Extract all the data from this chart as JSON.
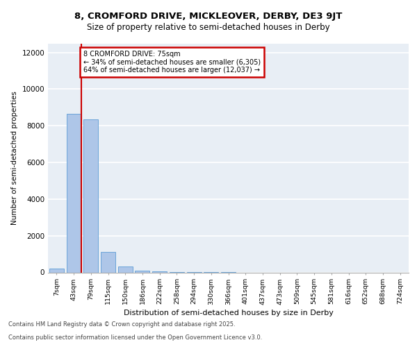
{
  "title_line1": "8, CROMFORD DRIVE, MICKLEOVER, DERBY, DE3 9JT",
  "title_line2": "Size of property relative to semi-detached houses in Derby",
  "xlabel": "Distribution of semi-detached houses by size in Derby",
  "ylabel": "Number of semi-detached properties",
  "categories": [
    "7sqm",
    "43sqm",
    "79sqm",
    "115sqm",
    "150sqm",
    "186sqm",
    "222sqm",
    "258sqm",
    "294sqm",
    "330sqm",
    "366sqm",
    "401sqm",
    "437sqm",
    "473sqm",
    "509sqm",
    "545sqm",
    "581sqm",
    "616sqm",
    "652sqm",
    "688sqm",
    "724sqm"
  ],
  "values": [
    210,
    8650,
    8340,
    1100,
    320,
    100,
    70,
    15,
    5,
    2,
    1,
    0,
    0,
    0,
    0,
    0,
    0,
    0,
    0,
    0,
    0
  ],
  "bar_color": "#aec6e8",
  "bar_edge_color": "#5b9bd5",
  "ylim": [
    0,
    12500
  ],
  "yticks": [
    0,
    2000,
    4000,
    6000,
    8000,
    10000,
    12000
  ],
  "property_name": "8 CROMFORD DRIVE: 75sqm",
  "pct_smaller": 34,
  "pct_larger": 64,
  "count_smaller": 6305,
  "count_larger": 12037,
  "vline_color": "#cc0000",
  "annotation_box_color": "#cc0000",
  "background_color": "#e8eef5",
  "grid_color": "#ffffff",
  "footer_line1": "Contains HM Land Registry data © Crown copyright and database right 2025.",
  "footer_line2": "Contains public sector information licensed under the Open Government Licence v3.0."
}
